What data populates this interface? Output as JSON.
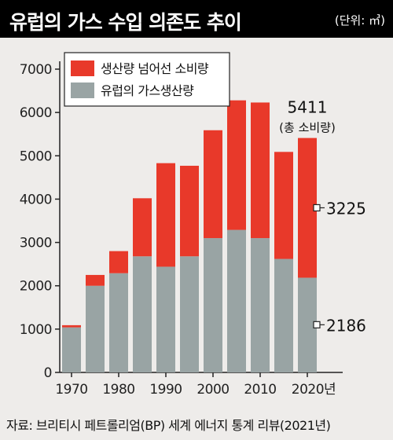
{
  "header": {
    "title": "유럽의 가스 수입 의존도 추이",
    "unit": "(단위: ㎥)"
  },
  "source": "자료: 브리티시 페트롤리엄(BP) 세계 에너지 통계 리뷰(2021년)",
  "colors": {
    "consumption_over": "#e8392a",
    "production": "#99a4a4",
    "background": "#eeecea",
    "title_bg": "#000000"
  },
  "chart_data": {
    "type": "bar",
    "stacked": true,
    "x": [
      1970,
      1975,
      1980,
      1985,
      1990,
      1995,
      2000,
      2005,
      2010,
      2015,
      2020
    ],
    "x_tick_labels": [
      "1970",
      "1980",
      "1990",
      "2000",
      "2010",
      "2020년"
    ],
    "x_tick_values": [
      1970,
      1980,
      1990,
      2000,
      2010,
      2020
    ],
    "series": [
      {
        "name": "유럽의 가스생산량",
        "values": [
          1040,
          2000,
          2290,
          2680,
          2440,
          2680,
          3100,
          3290,
          3100,
          2620,
          2186
        ]
      },
      {
        "name": "생산량 넘어선 소비량",
        "values": [
          50,
          250,
          510,
          1340,
          2390,
          2090,
          2490,
          2990,
          3130,
          2470,
          3225
        ]
      }
    ],
    "ylim": [
      0,
      7000
    ],
    "y_ticks": [
      0,
      1000,
      2000,
      3000,
      4000,
      5000,
      6000,
      7000
    ],
    "legend_position": "top-left",
    "grid": false,
    "annotations": {
      "total_value": "5411",
      "total_label": "(총 소비량)",
      "consumption_value": "3225",
      "production_value": "2186"
    }
  }
}
